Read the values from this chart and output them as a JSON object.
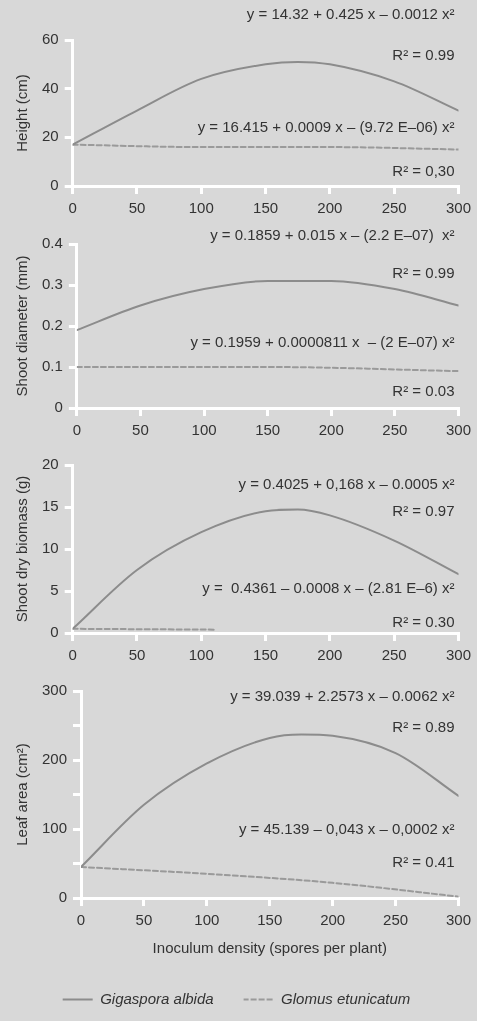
{
  "chart_data": [
    {
      "type": "line",
      "ylabel": "Height (cm)",
      "xlim": [
        0,
        300
      ],
      "xticks": [
        0,
        50,
        100,
        150,
        200,
        250,
        300
      ],
      "ylim": [
        0,
        60
      ],
      "yticks": [
        0,
        20,
        40,
        60
      ],
      "grid": false,
      "legend": false,
      "marker": "none",
      "x": [
        0,
        50,
        100,
        150,
        175,
        200,
        250,
        300
      ],
      "series": [
        {
          "color": "#8c8c8c",
          "line_style": "solid",
          "values": [
            17,
            31,
            44,
            50,
            51,
            50,
            43,
            31
          ]
        },
        {
          "color": "#9a9a9a",
          "line_style": "dashed",
          "x": [
            0,
            100,
            200,
            300
          ],
          "values": [
            17,
            16,
            16,
            15
          ]
        }
      ],
      "annotations": [
        "y = 14.32 + 0.425 x – 0.0012 x²",
        "R² = 0.99",
        "y = 16.415 + 0.0009 x – (9.72 E–06) x²",
        "R² = 0,30"
      ]
    },
    {
      "type": "line",
      "ylabel": "Shoot diameter (mm)",
      "xlim": [
        0,
        300
      ],
      "xticks": [
        0,
        50,
        100,
        150,
        200,
        250,
        300
      ],
      "ylim": [
        0,
        0.4
      ],
      "yticks": [
        0,
        0.1,
        0.2,
        0.3,
        0.4
      ],
      "grid": false,
      "legend": false,
      "marker": "none",
      "x": [
        0,
        50,
        100,
        150,
        175,
        200,
        250,
        300
      ],
      "series": [
        {
          "color": "#8c8c8c",
          "line_style": "solid",
          "values": [
            0.19,
            0.25,
            0.29,
            0.31,
            0.31,
            0.31,
            0.29,
            0.25
          ]
        },
        {
          "color": "#9a9a9a",
          "line_style": "dashed",
          "x": [
            0,
            150,
            300
          ],
          "values": [
            0.1,
            0.1,
            0.09
          ]
        }
      ],
      "annotations": [
        "y = 0.1859 + 0.015 x – (2.2 E–07)  x²",
        "R² = 0.99",
        "y = 0.1959 + 0.0000811 x  – (2 E–07) x²",
        "R² = 0.03"
      ]
    },
    {
      "type": "line",
      "ylabel": "Shoot dry biomass (g)",
      "xlim": [
        0,
        300
      ],
      "xticks": [
        0,
        50,
        100,
        150,
        200,
        250,
        300
      ],
      "ylim": [
        0,
        20
      ],
      "yticks": [
        0,
        5,
        10,
        15,
        20
      ],
      "grid": false,
      "legend": false,
      "marker": "none",
      "x": [
        0,
        50,
        100,
        150,
        175,
        200,
        250,
        300
      ],
      "series": [
        {
          "color": "#8c8c8c",
          "line_style": "solid",
          "values": [
            0.5,
            7.5,
            12,
            14.5,
            14.7,
            14,
            11,
            7
          ]
        },
        {
          "color": "#9a9a9a",
          "line_style": "dashed",
          "x": [
            0,
            110
          ],
          "values": [
            0.5,
            0.4
          ]
        }
      ],
      "annotations": [
        "y = 0.4025 + 0,168 x – 0.0005 x²",
        "R² = 0.97",
        "y =  0.4361 – 0.0008 x – (2.81 E–6) x²",
        "R² = 0.30"
      ]
    },
    {
      "type": "line",
      "ylabel": "Leaf area (cm²)",
      "xlabel": "Inoculum density (spores per plant)",
      "xlim": [
        0,
        300
      ],
      "xticks": [
        0,
        50,
        100,
        150,
        200,
        250,
        300
      ],
      "ylim": [
        0,
        300
      ],
      "yticks": [
        0,
        {
          "value": 50,
          "label": null
        },
        100,
        {
          "value": 150,
          "label": null
        },
        200,
        {
          "value": 250,
          "label": null
        },
        300
      ],
      "grid": false,
      "legend": "bottom",
      "marker": "none",
      "x": [
        0,
        50,
        100,
        150,
        175,
        200,
        250,
        300
      ],
      "series": [
        {
          "name": "Gigaspora albida",
          "color": "#8c8c8c",
          "line_style": "solid",
          "values": [
            45,
            135,
            195,
            232,
            237,
            235,
            210,
            148
          ]
        },
        {
          "name": "Glomus etunicatum",
          "color": "#9a9a9a",
          "line_style": "dashed",
          "x": [
            0,
            100,
            200,
            300
          ],
          "values": [
            45,
            35,
            22,
            2
          ]
        }
      ],
      "annotations": [
        "y = 39.039 + 2.2573 x – 0.0062 x²",
        "R² = 0.89",
        "y = 45.139 – 0,043 x – 0,0002 x²",
        "R² = 0.41"
      ]
    }
  ]
}
